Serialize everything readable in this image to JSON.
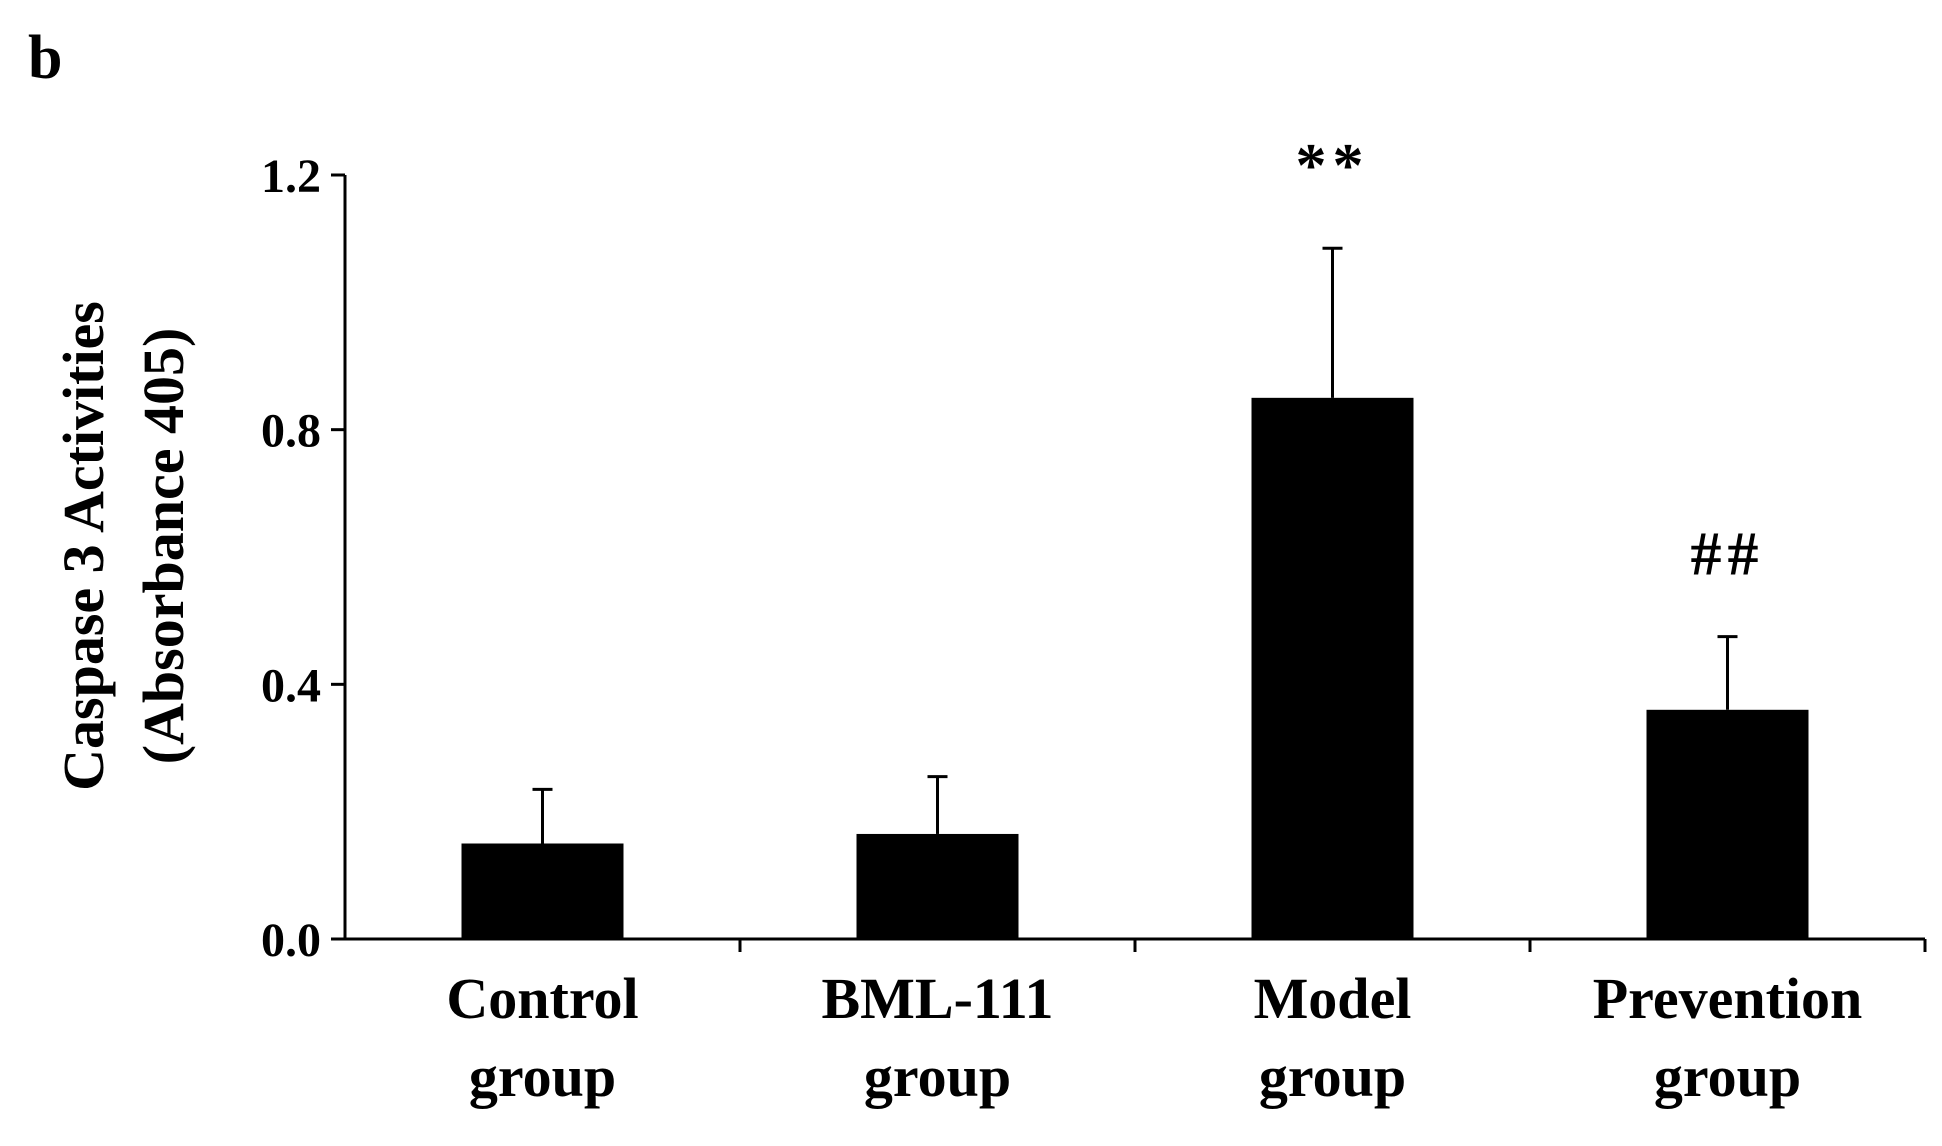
{
  "panel_label": "b",
  "chart_data": {
    "type": "bar",
    "title": "",
    "xlabel": "",
    "ylabel_lines": [
      "Caspase 3 Activities",
      "(Absorbance 405)"
    ],
    "categories": [
      [
        "Control",
        "group"
      ],
      [
        "BML-111",
        "group"
      ],
      [
        "Model",
        "group"
      ],
      [
        "Prevention",
        "group"
      ]
    ],
    "values": [
      0.15,
      0.165,
      0.85,
      0.36
    ],
    "errors": [
      0.085,
      0.09,
      0.235,
      0.115
    ],
    "annotations": [
      "",
      "",
      "**",
      "##"
    ],
    "ylim": [
      0.0,
      1.2
    ],
    "yticks": [
      "0.0",
      "0.4",
      "0.8",
      "1.2"
    ],
    "bar_color": "#000000",
    "grid": false,
    "legend": "none"
  }
}
